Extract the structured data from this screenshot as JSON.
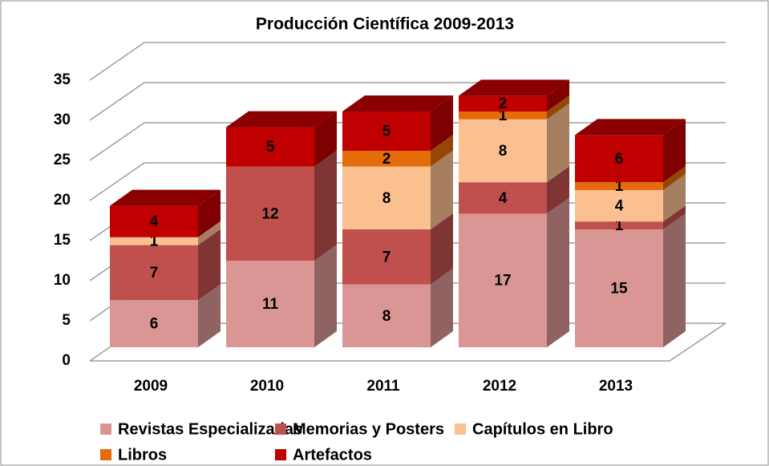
{
  "chart_data": {
    "type": "bar",
    "stacked": true,
    "title": "Producción Científica 2009-2013",
    "categories": [
      "2009",
      "2010",
      "2011",
      "2012",
      "2013"
    ],
    "series": [
      {
        "name": "Revistas Especializadas",
        "color": "#d99694",
        "values": [
          6,
          11,
          8,
          17,
          15
        ]
      },
      {
        "name": "Memorias y Posters",
        "color": "#c0504d",
        "values": [
          7,
          12,
          7,
          4,
          1
        ]
      },
      {
        "name": "Capítulos en Libro",
        "color": "#fac090",
        "values": [
          1,
          0,
          8,
          8,
          4
        ]
      },
      {
        "name": "Libros",
        "color": "#e46c0a",
        "values": [
          0,
          0,
          2,
          1,
          1
        ]
      },
      {
        "name": "Artefactos",
        "color": "#c00000",
        "values": [
          4,
          5,
          5,
          2,
          6
        ]
      }
    ],
    "ylim": [
      0,
      35
    ],
    "yticks": [
      0,
      5,
      10,
      15,
      20,
      25,
      30,
      35
    ],
    "grid": true,
    "legend": "bottom"
  }
}
